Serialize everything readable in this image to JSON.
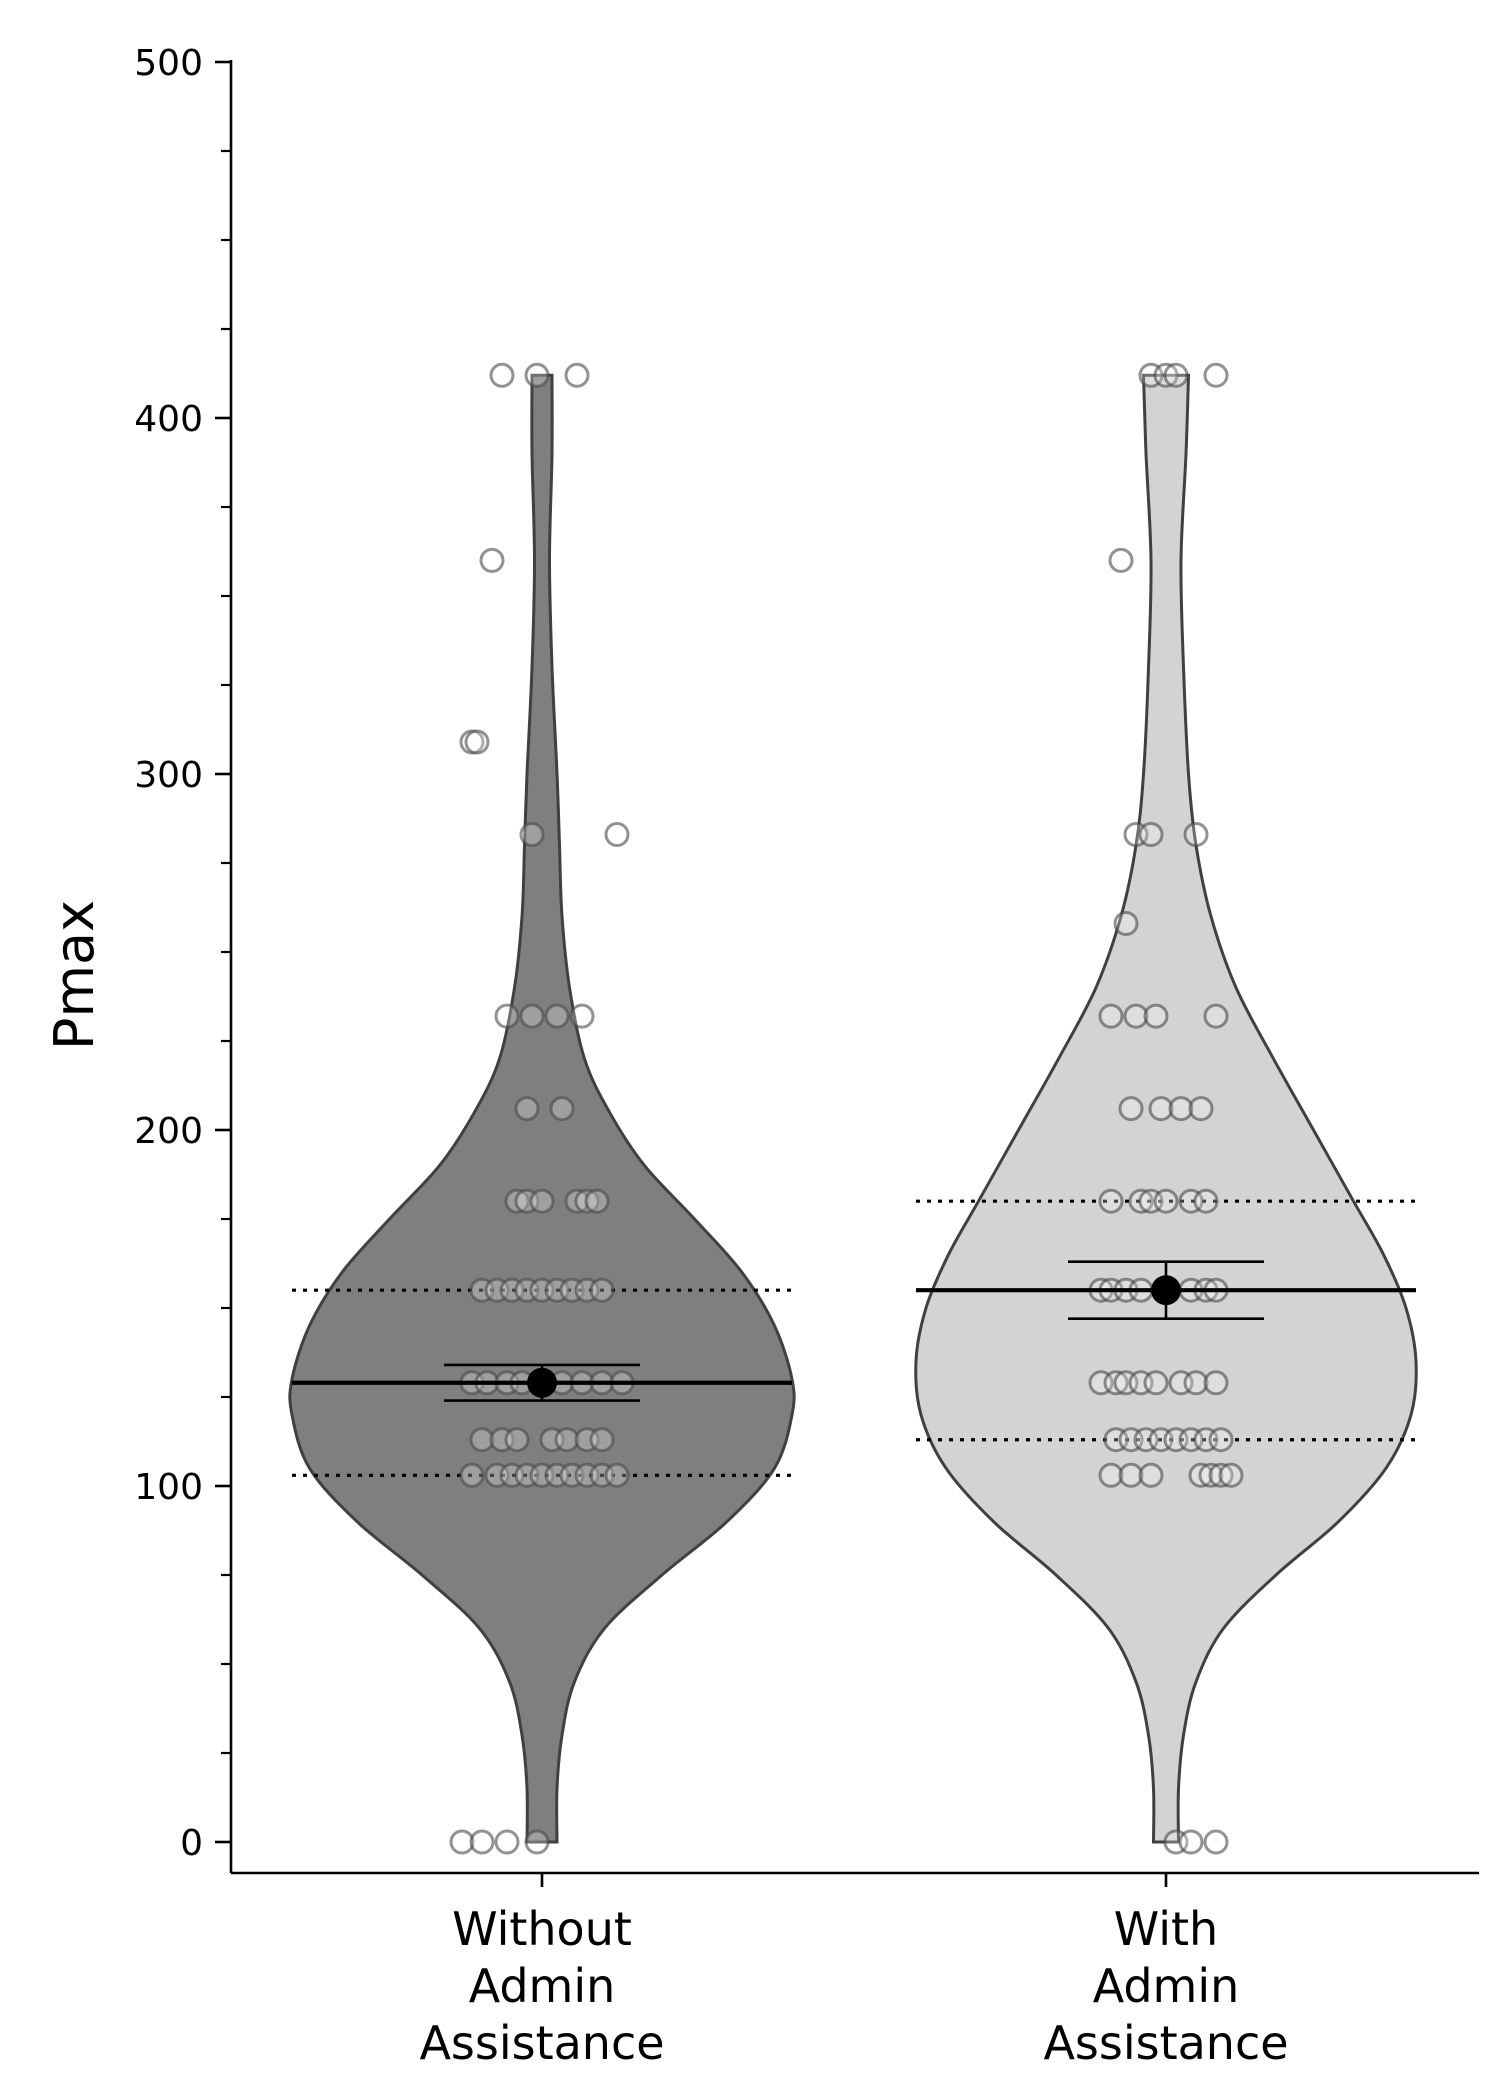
{
  "chart_data": {
    "type": "violin",
    "ylabel": "Pmax",
    "ylim": [
      -10,
      500
    ],
    "yticks_major": [
      0,
      100,
      200,
      300,
      400,
      500
    ],
    "yticks_minor": [
      25,
      50,
      75,
      125,
      150,
      175,
      225,
      250,
      275,
      325,
      350,
      375,
      425,
      450,
      475
    ],
    "grid": false,
    "groups": [
      {
        "label_lines": [
          "Without",
          "Admin",
          "Assistance"
        ],
        "fill_color": "#7f7f7f",
        "mean": 129,
        "sem": [
          124,
          134
        ],
        "q1": 103,
        "q3": 155,
        "min": 0,
        "max": 412,
        "density_profile": [
          [
            0,
            0.06
          ],
          [
            15,
            0.06
          ],
          [
            30,
            0.08
          ],
          [
            45,
            0.13
          ],
          [
            60,
            0.25
          ],
          [
            75,
            0.48
          ],
          [
            90,
            0.74
          ],
          [
            105,
            0.93
          ],
          [
            120,
            1.0
          ],
          [
            130,
            1.0
          ],
          [
            145,
            0.93
          ],
          [
            160,
            0.8
          ],
          [
            175,
            0.61
          ],
          [
            190,
            0.41
          ],
          [
            205,
            0.27
          ],
          [
            220,
            0.17
          ],
          [
            240,
            0.11
          ],
          [
            260,
            0.08
          ],
          [
            280,
            0.07
          ],
          [
            300,
            0.06
          ],
          [
            330,
            0.04
          ],
          [
            360,
            0.03
          ],
          [
            390,
            0.04
          ],
          [
            412,
            0.04
          ]
        ],
        "points": [
          [
            0,
            -0.16
          ],
          [
            0,
            -0.12
          ],
          [
            0,
            -0.07
          ],
          [
            0,
            -0.01
          ],
          [
            103,
            -0.14
          ],
          [
            103,
            -0.09
          ],
          [
            103,
            -0.06
          ],
          [
            103,
            -0.03
          ],
          [
            103,
            0.0
          ],
          [
            103,
            0.03
          ],
          [
            103,
            0.06
          ],
          [
            103,
            0.09
          ],
          [
            103,
            0.12
          ],
          [
            103,
            0.15
          ],
          [
            113,
            -0.12
          ],
          [
            113,
            -0.08
          ],
          [
            113,
            -0.05
          ],
          [
            113,
            0.02
          ],
          [
            113,
            0.05
          ],
          [
            113,
            0.09
          ],
          [
            113,
            0.12
          ],
          [
            129,
            -0.14
          ],
          [
            129,
            -0.11
          ],
          [
            129,
            -0.07
          ],
          [
            129,
            -0.04
          ],
          [
            129,
            0.0
          ],
          [
            129,
            0.04
          ],
          [
            129,
            0.08
          ],
          [
            129,
            0.12
          ],
          [
            129,
            0.16
          ],
          [
            155,
            -0.12
          ],
          [
            155,
            -0.09
          ],
          [
            155,
            -0.06
          ],
          [
            155,
            -0.03
          ],
          [
            155,
            0.0
          ],
          [
            155,
            0.03
          ],
          [
            155,
            0.06
          ],
          [
            155,
            0.09
          ],
          [
            155,
            0.12
          ],
          [
            180,
            -0.05
          ],
          [
            180,
            -0.03
          ],
          [
            180,
            0.0
          ],
          [
            180,
            0.07
          ],
          [
            180,
            0.09
          ],
          [
            180,
            0.11
          ],
          [
            206,
            -0.03
          ],
          [
            206,
            0.04
          ],
          [
            232,
            -0.07
          ],
          [
            232,
            -0.02
          ],
          [
            232,
            0.03
          ],
          [
            232,
            0.08
          ],
          [
            283,
            -0.02
          ],
          [
            283,
            0.15
          ],
          [
            309,
            -0.14
          ],
          [
            309,
            -0.13
          ],
          [
            360,
            -0.1
          ],
          [
            412,
            -0.08
          ],
          [
            412,
            -0.01
          ],
          [
            412,
            0.07
          ]
        ]
      },
      {
        "label_lines": [
          "With",
          "Admin",
          "Assistance"
        ],
        "fill_color": "#d3d3d3",
        "mean": 155,
        "sem": [
          147,
          163
        ],
        "q1": 113,
        "q3": 180,
        "min": 0,
        "max": 412,
        "density_profile": [
          [
            0,
            0.05
          ],
          [
            15,
            0.05
          ],
          [
            30,
            0.07
          ],
          [
            45,
            0.12
          ],
          [
            60,
            0.23
          ],
          [
            75,
            0.44
          ],
          [
            90,
            0.69
          ],
          [
            105,
            0.88
          ],
          [
            120,
            0.98
          ],
          [
            135,
            1.0
          ],
          [
            150,
            0.96
          ],
          [
            165,
            0.87
          ],
          [
            180,
            0.75
          ],
          [
            200,
            0.59
          ],
          [
            220,
            0.43
          ],
          [
            240,
            0.28
          ],
          [
            260,
            0.18
          ],
          [
            280,
            0.12
          ],
          [
            300,
            0.09
          ],
          [
            330,
            0.07
          ],
          [
            360,
            0.06
          ],
          [
            390,
            0.08
          ],
          [
            412,
            0.09
          ]
        ],
        "points": [
          [
            0,
            0.02
          ],
          [
            0,
            0.05
          ],
          [
            0,
            0.1
          ],
          [
            103,
            -0.11
          ],
          [
            103,
            -0.07
          ],
          [
            103,
            -0.03
          ],
          [
            103,
            0.07
          ],
          [
            103,
            0.09
          ],
          [
            103,
            0.11
          ],
          [
            103,
            0.13
          ],
          [
            113,
            -0.1
          ],
          [
            113,
            -0.07
          ],
          [
            113,
            -0.04
          ],
          [
            113,
            -0.01
          ],
          [
            113,
            0.02
          ],
          [
            113,
            0.05
          ],
          [
            113,
            0.08
          ],
          [
            113,
            0.11
          ],
          [
            129,
            -0.13
          ],
          [
            129,
            -0.1
          ],
          [
            129,
            -0.08
          ],
          [
            129,
            -0.05
          ],
          [
            129,
            -0.02
          ],
          [
            129,
            0.03
          ],
          [
            129,
            0.06
          ],
          [
            129,
            0.1
          ],
          [
            155,
            -0.13
          ],
          [
            155,
            -0.11
          ],
          [
            155,
            -0.08
          ],
          [
            155,
            -0.05
          ],
          [
            155,
            0.0
          ],
          [
            155,
            0.05
          ],
          [
            155,
            0.08
          ],
          [
            155,
            0.1
          ],
          [
            180,
            -0.11
          ],
          [
            180,
            -0.05
          ],
          [
            180,
            -0.03
          ],
          [
            180,
            0.0
          ],
          [
            180,
            0.05
          ],
          [
            180,
            0.08
          ],
          [
            206,
            -0.07
          ],
          [
            206,
            -0.01
          ],
          [
            206,
            0.03
          ],
          [
            206,
            0.07
          ],
          [
            232,
            -0.11
          ],
          [
            232,
            -0.06
          ],
          [
            232,
            -0.02
          ],
          [
            232,
            0.1
          ],
          [
            258,
            -0.08
          ],
          [
            283,
            -0.06
          ],
          [
            283,
            -0.03
          ],
          [
            283,
            0.06
          ],
          [
            360,
            -0.09
          ],
          [
            412,
            -0.03
          ],
          [
            412,
            0.0
          ],
          [
            412,
            0.02
          ],
          [
            412,
            0.1
          ]
        ]
      }
    ]
  }
}
